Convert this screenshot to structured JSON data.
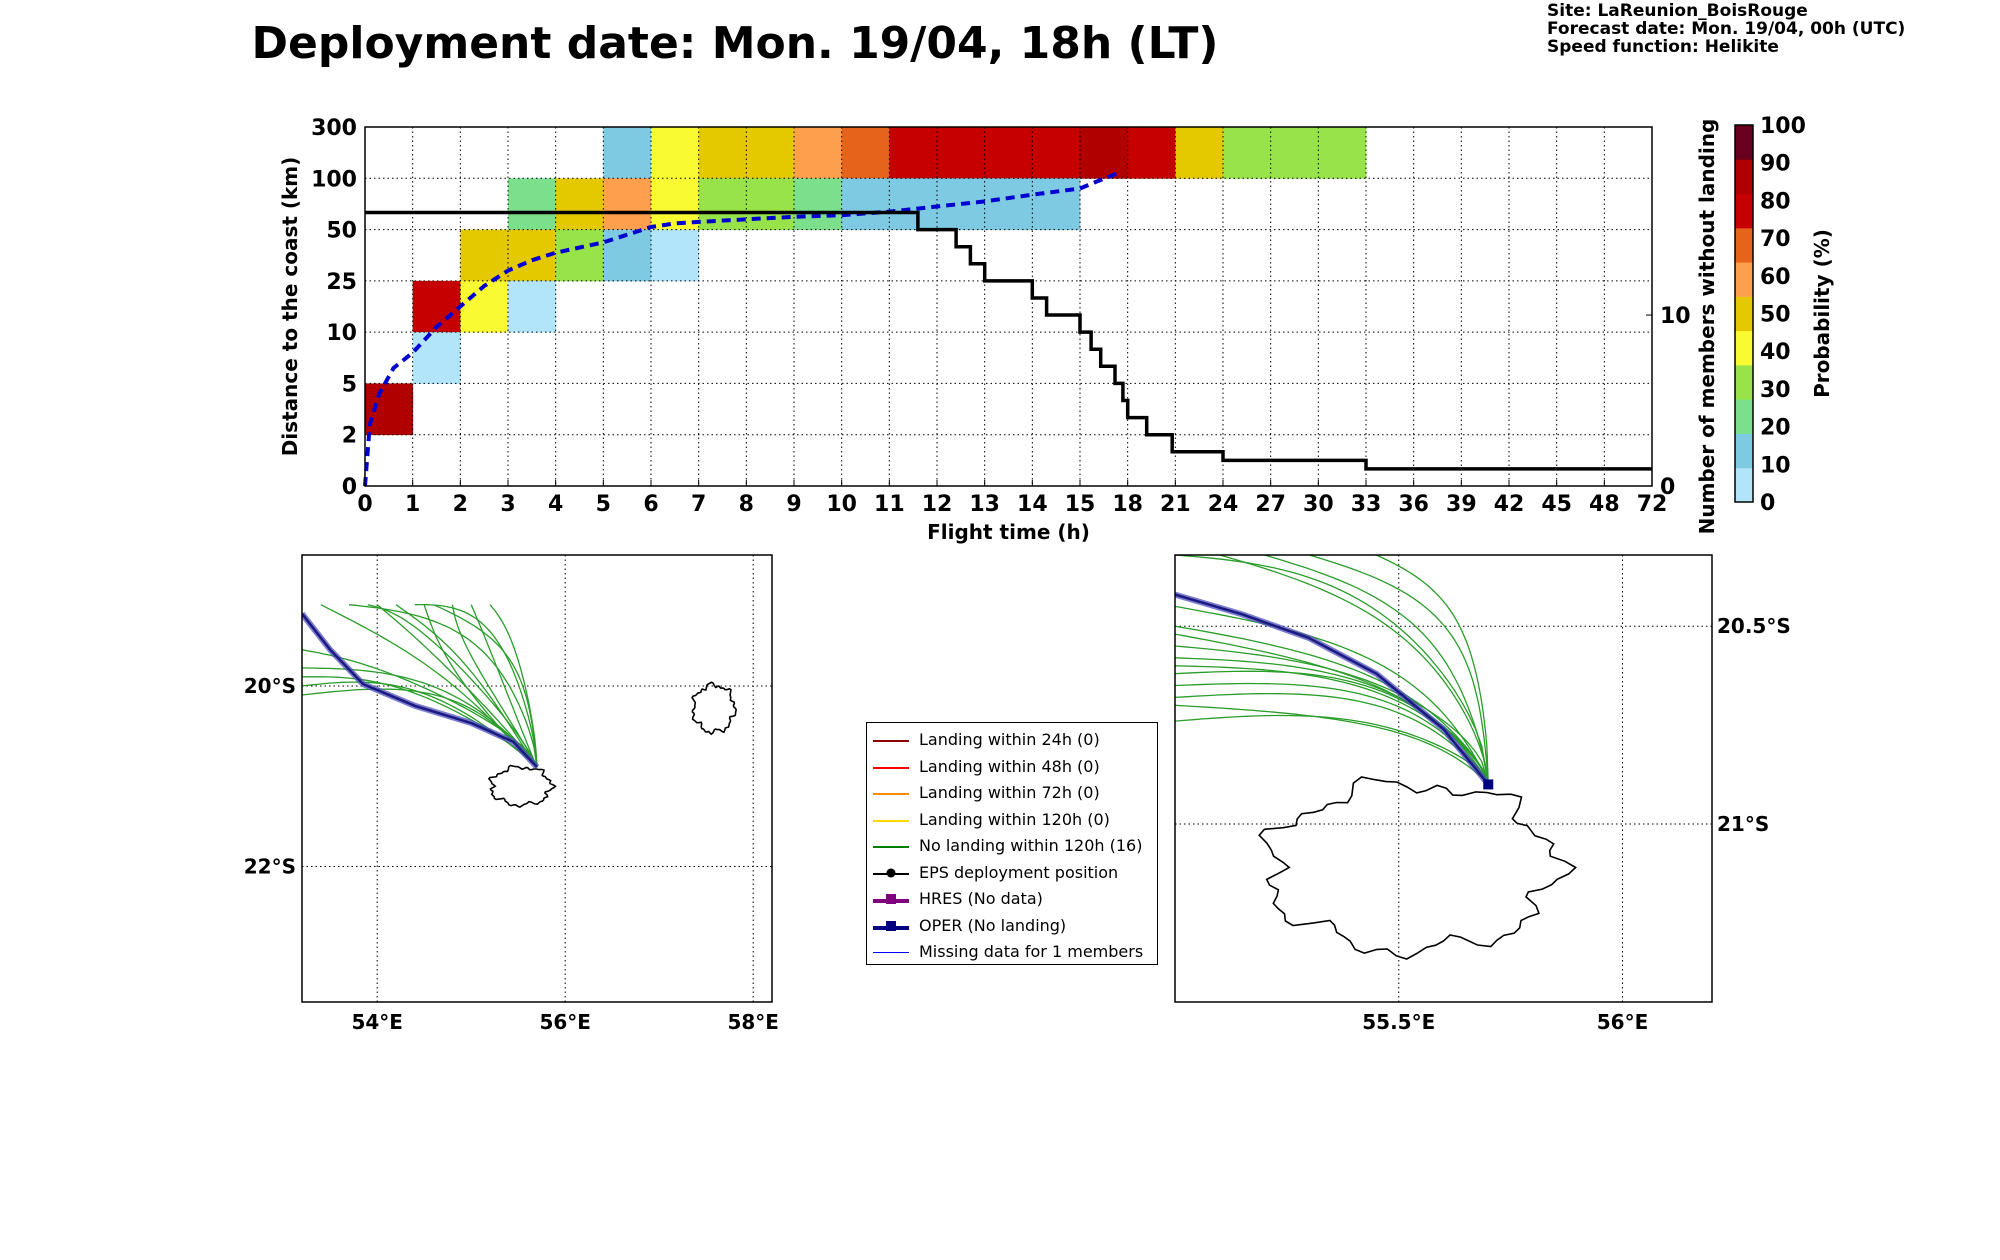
{
  "header": {
    "title": "Deployment date: Mon. 19/04, 18h (LT)",
    "site": "Site: LaReunion_BoisRouge",
    "forecast": "Forecast date: Mon. 19/04, 00h (UTC)",
    "speed": "Speed function: Helikite"
  },
  "chart_data": [
    {
      "type": "heatmap",
      "title": "",
      "xlabel": "Flight time (h)",
      "ylabel": "Distance to the coast (km)",
      "y2label": "Number of members without landing",
      "colorbar_label": "Probability (%)",
      "x_ticks": [
        "0",
        "1",
        "2",
        "3",
        "4",
        "5",
        "6",
        "7",
        "8",
        "9",
        "10",
        "11",
        "12",
        "13",
        "14",
        "15",
        "18",
        "21",
        "24",
        "27",
        "30",
        "33",
        "36",
        "39",
        "42",
        "45",
        "48",
        "72"
      ],
      "y_bands": [
        "0",
        "2",
        "5",
        "10",
        "25",
        "50",
        "100",
        "300"
      ],
      "y2_ticks": [
        {
          "label": "0",
          "value": 0
        },
        {
          "label": "10",
          "value": 10
        }
      ],
      "y2_range": [
        0,
        21
      ],
      "grid": true,
      "colorbar": {
        "ticks": [
          "0",
          "10",
          "20",
          "30",
          "40",
          "50",
          "60",
          "70",
          "80",
          "90",
          "100"
        ],
        "colors": [
          "#b3e5fa",
          "#7ecae2",
          "#7bdf8c",
          "#97e349",
          "#fafa32",
          "#e4c800",
          "#fe9f4e",
          "#e6631c",
          "#c60000",
          "#b00000",
          "#6a0020"
        ]
      },
      "cells": [
        {
          "col": 0,
          "band": 1,
          "p": 95
        },
        {
          "col": 1,
          "band": 3,
          "p": 80
        },
        {
          "col": 1,
          "band": 2,
          "p": 5
        },
        {
          "col": 2,
          "band": 4,
          "p": 50
        },
        {
          "col": 2,
          "band": 3,
          "p": 45
        },
        {
          "col": 3,
          "band": 5,
          "p": 25
        },
        {
          "col": 3,
          "band": 4,
          "p": 50
        },
        {
          "col": 3,
          "band": 3,
          "p": 5
        },
        {
          "col": 4,
          "band": 5,
          "p": 50
        },
        {
          "col": 4,
          "band": 4,
          "p": 35
        },
        {
          "col": 5,
          "band": 6,
          "p": 15
        },
        {
          "col": 5,
          "band": 5,
          "p": 60
        },
        {
          "col": 5,
          "band": 4,
          "p": 15
        },
        {
          "col": 6,
          "band": 6,
          "p": 45
        },
        {
          "col": 6,
          "band": 5,
          "p": 45
        },
        {
          "col": 6,
          "band": 4,
          "p": 5
        },
        {
          "col": 7,
          "band": 6,
          "p": 50
        },
        {
          "col": 7,
          "band": 5,
          "p": 35
        },
        {
          "col": 8,
          "band": 6,
          "p": 50
        },
        {
          "col": 8,
          "band": 5,
          "p": 35
        },
        {
          "col": 9,
          "band": 6,
          "p": 65
        },
        {
          "col": 9,
          "band": 5,
          "p": 25
        },
        {
          "col": 10,
          "band": 6,
          "p": 75
        },
        {
          "col": 10,
          "band": 5,
          "p": 15
        },
        {
          "col": 11,
          "band": 6,
          "p": 85
        },
        {
          "col": 11,
          "band": 5,
          "p": 15
        },
        {
          "col": 12,
          "band": 6,
          "p": 85
        },
        {
          "col": 12,
          "band": 5,
          "p": 15
        },
        {
          "col": 13,
          "band": 6,
          "p": 85
        },
        {
          "col": 13,
          "band": 5,
          "p": 15
        },
        {
          "col": 14,
          "band": 6,
          "p": 85
        },
        {
          "col": 14,
          "band": 5,
          "p": 15
        },
        {
          "col": 15,
          "band": 6,
          "p": 95
        },
        {
          "col": 16,
          "band": 6,
          "p": 85
        },
        {
          "col": 17,
          "band": 6,
          "p": 50
        },
        {
          "col": 18,
          "band": 6,
          "p": 35
        },
        {
          "col": 19,
          "band": 6,
          "p": 35
        },
        {
          "col": 20,
          "band": 6,
          "p": 35
        }
      ],
      "series": [
        {
          "name": "",
          "style": "step",
          "axis": "right",
          "color": "#000000",
          "points": [
            [
              0,
              16
            ],
            [
              11.6,
              16
            ],
            [
              11.6,
              15
            ],
            [
              12.4,
              15
            ],
            [
              12.4,
              14
            ],
            [
              12.7,
              14
            ],
            [
              12.7,
              13
            ],
            [
              13,
              13
            ],
            [
              13,
              12
            ],
            [
              14,
              12
            ],
            [
              14,
              11
            ],
            [
              14.3,
              11
            ],
            [
              14.3,
              10
            ],
            [
              15,
              10
            ],
            [
              15,
              9
            ],
            [
              15.7,
              9
            ],
            [
              15.7,
              8
            ],
            [
              16.3,
              8
            ],
            [
              16.3,
              7
            ],
            [
              17.2,
              7
            ],
            [
              17.2,
              6
            ],
            [
              17.7,
              6
            ],
            [
              17.7,
              5
            ],
            [
              18,
              5
            ],
            [
              18,
              4
            ],
            [
              19.2,
              4
            ],
            [
              19.2,
              3
            ],
            [
              20.8,
              3
            ],
            [
              20.8,
              2
            ],
            [
              24,
              2
            ],
            [
              24,
              1.5
            ],
            [
              33,
              1.5
            ],
            [
              33,
              1
            ],
            [
              72,
              1
            ]
          ]
        },
        {
          "name": "",
          "style": "dashed",
          "axis": "cumulative",
          "color": "#0000d0",
          "points": [
            [
              0,
              0
            ],
            [
              0.1,
              1.2
            ],
            [
              0.3,
              1.8
            ],
            [
              0.6,
              2.3
            ],
            [
              1,
              2.6
            ],
            [
              1.5,
              3.1
            ],
            [
              2,
              3.5
            ],
            [
              2.5,
              3.9
            ],
            [
              3,
              4.2
            ],
            [
              3.5,
              4.4
            ],
            [
              4,
              4.55
            ],
            [
              5,
              4.75
            ],
            [
              5.5,
              4.9
            ],
            [
              6,
              5.05
            ],
            [
              6.5,
              5.12
            ],
            [
              7,
              5.15
            ],
            [
              8,
              5.2
            ],
            [
              9,
              5.25
            ],
            [
              10,
              5.28
            ],
            [
              11,
              5.35
            ],
            [
              12,
              5.45
            ],
            [
              13,
              5.55
            ],
            [
              14,
              5.68
            ],
            [
              15,
              5.8
            ],
            [
              16,
              5.93
            ],
            [
              17,
              6.05
            ],
            [
              17.3,
              6.1
            ]
          ]
        }
      ]
    },
    {
      "type": "map",
      "name": "overview",
      "lon_ticks": [
        "54°E",
        "56°E",
        "58°E"
      ],
      "lat_ticks": [
        "20°S",
        "22°S"
      ],
      "lon_range": [
        53.2,
        58.2
      ],
      "lat_range": [
        -23.5,
        -18.55
      ],
      "gridlines": true,
      "deployment": [
        55.7,
        -20.9
      ]
    },
    {
      "type": "map",
      "name": "zoom",
      "lon_ticks": [
        "55.5°E",
        "56°E"
      ],
      "lat_ticks": [
        "20.5°S",
        "21°S"
      ],
      "lon_range": [
        55.0,
        56.2
      ],
      "lat_range": [
        -21.45,
        -20.32
      ],
      "gridlines": true,
      "deployment": [
        55.7,
        -20.9
      ]
    }
  ],
  "legend": {
    "items": [
      {
        "label": "Landing within 24h (0)",
        "color": "#8b0000",
        "kind": "line"
      },
      {
        "label": "Landing within 48h (0)",
        "color": "#ff0000",
        "kind": "line"
      },
      {
        "label": "Landing within 72h (0)",
        "color": "#ff8c00",
        "kind": "line"
      },
      {
        "label": "Landing within 120h (0)",
        "color": "#ffd700",
        "kind": "line"
      },
      {
        "label": "No landing within 120h (16)",
        "color": "#008000",
        "kind": "line"
      },
      {
        "label": "EPS deployment position",
        "color": "#000000",
        "kind": "dot"
      },
      {
        "label": "HRES (No data)",
        "color": "#800080",
        "kind": "square"
      },
      {
        "label": "OPER (No landing)",
        "color": "#000080",
        "kind": "square"
      },
      {
        "label": "Missing data for 1 members",
        "color": "#0000ff",
        "kind": "thin"
      }
    ]
  }
}
